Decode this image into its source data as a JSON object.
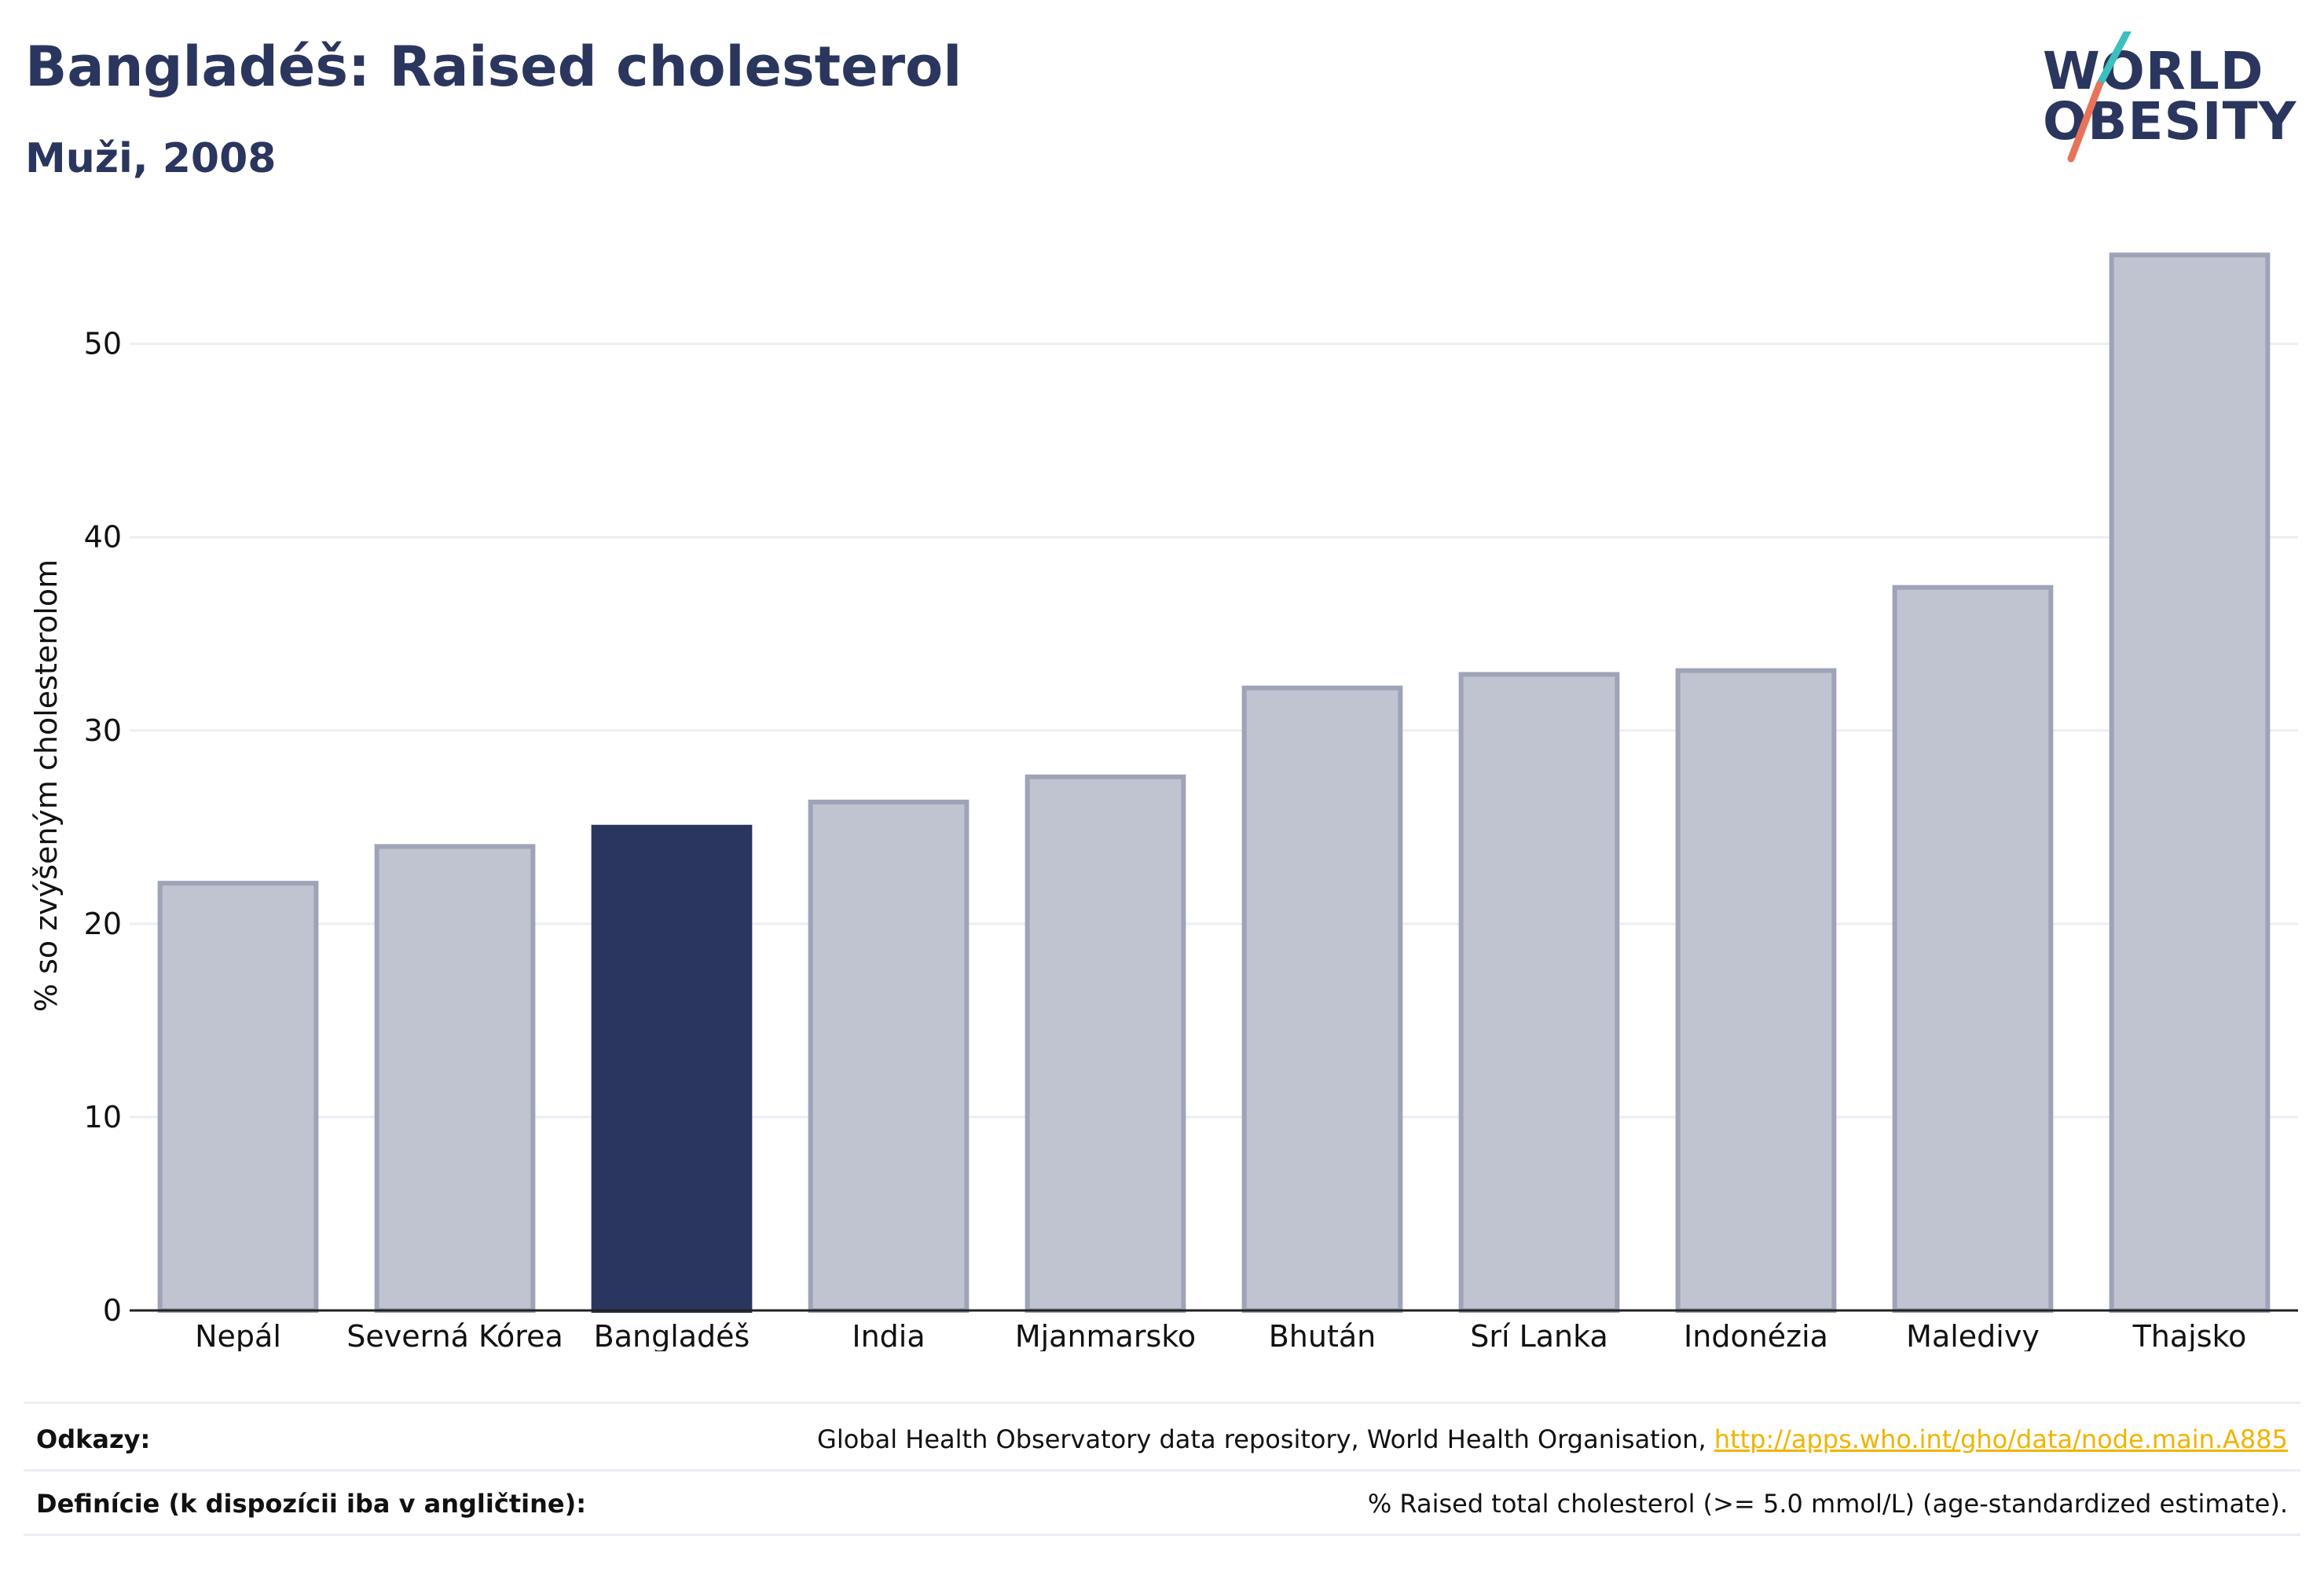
{
  "header": {
    "title": "Bangladéš: Raised cholesterol",
    "subtitle": "Muži, 2008"
  },
  "logo": {
    "line1": "WORLD",
    "line2": "OBESITY",
    "slash_colors": [
      "#3bbfbf",
      "#e8735a"
    ]
  },
  "chart_data": {
    "type": "bar",
    "title": "Bangladéš: Raised cholesterol",
    "subtitle": "Muži, 2008",
    "ylabel": "% so zvýšeným cholesterolom",
    "xlabel": "",
    "ylim": [
      0,
      56
    ],
    "yticks": [
      0,
      10,
      20,
      30,
      40,
      50
    ],
    "grid": true,
    "highlight": "Bangladéš",
    "colors": {
      "bar": "#c0c3d0",
      "bar_edge": "#9ea3b8",
      "highlight": "#2b365e",
      "grid": "#eceef3",
      "axis": "#222222"
    },
    "categories": [
      "Nepál",
      "Severná Kórea",
      "Bangladéš",
      "India",
      "Mjanmarsko",
      "Bhután",
      "Srí Lanka",
      "Indonézia",
      "Maledivy",
      "Thajsko"
    ],
    "values": [
      22.1,
      24.0,
      25.0,
      26.3,
      27.6,
      32.2,
      32.9,
      33.1,
      37.4,
      54.6
    ]
  },
  "footer": {
    "refs_label": "Odkazy:",
    "refs_text": "Global Health Observatory data repository, World Health Organisation, ",
    "refs_link": "http://apps.who.int/gho/data/node.main.A885",
    "def_label": "Definície (k dispozícii iba v angličtine):",
    "def_text": "% Raised total cholesterol (>= 5.0 mmol/L) (age-standardized estimate)."
  }
}
